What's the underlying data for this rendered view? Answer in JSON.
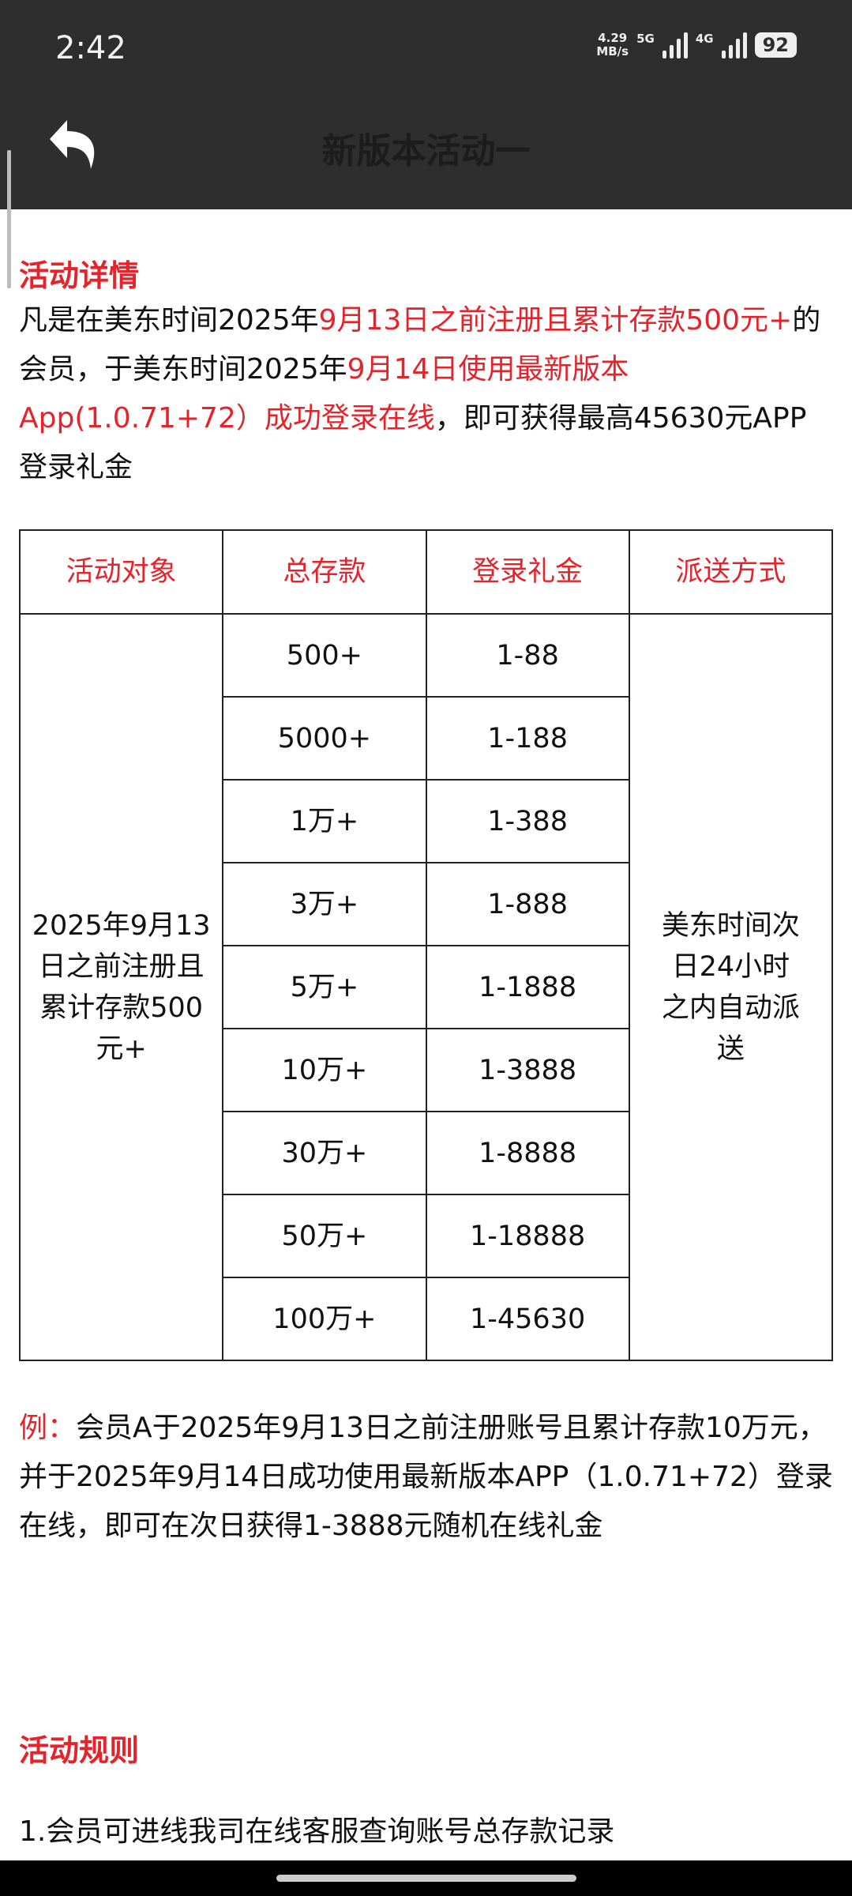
{
  "status": {
    "time": "2:42",
    "speed": "4.29",
    "speed_unit": "MB/s",
    "net1": "5G",
    "net2": "4G",
    "battery": "92"
  },
  "header": {
    "title": "新版本活动一",
    "back_icon": "back-arrow-icon"
  },
  "details": {
    "heading": "活动详情",
    "segments": [
      {
        "t": "凡是在美东时间2025年",
        "red": false
      },
      {
        "t": "9月13日之前注册且累计存款500元+",
        "red": true
      },
      {
        "t": "的会员，于美东时间2025年",
        "red": false
      },
      {
        "t": "9月14日使用最新版本App(1.0.71+72）成功登录在线",
        "red": true
      },
      {
        "t": "，即可获得最高45630元APP登录礼金",
        "red": false
      }
    ]
  },
  "table": {
    "headers": [
      "活动对象",
      "总存款",
      "登录礼金",
      "派送方式"
    ],
    "target": "2025年9月13日之前注册且累计存款500元+",
    "delivery": "美东时间次日24小时之内自动派送",
    "rows": [
      {
        "deposit": "500+",
        "bonus": "1-88"
      },
      {
        "deposit": "5000+",
        "bonus": "1-188"
      },
      {
        "deposit": "1万+",
        "bonus": "1-388"
      },
      {
        "deposit": "3万+",
        "bonus": "1-888"
      },
      {
        "deposit": "5万+",
        "bonus": "1-1888"
      },
      {
        "deposit": "10万+",
        "bonus": "1-3888"
      },
      {
        "deposit": "30万+",
        "bonus": "1-8888"
      },
      {
        "deposit": "50万+",
        "bonus": "1-18888"
      },
      {
        "deposit": "100万+",
        "bonus": "1-45630"
      }
    ]
  },
  "example": {
    "label": "例：",
    "text": "会员A于2025年9月13日之前注册账号且累计存款10万元，并于2025年9月14日成功使用最新版本APP（1.0.71+72）登录在线，即可在次日获得1-3888元随机在线礼金"
  },
  "rules": {
    "heading": "活动规则",
    "items": [
      "1.会员可进线我司在线客服查询账号总存款记录"
    ]
  },
  "colors": {
    "accent": "#e5232a",
    "header_bg": "#2e2e2e"
  }
}
